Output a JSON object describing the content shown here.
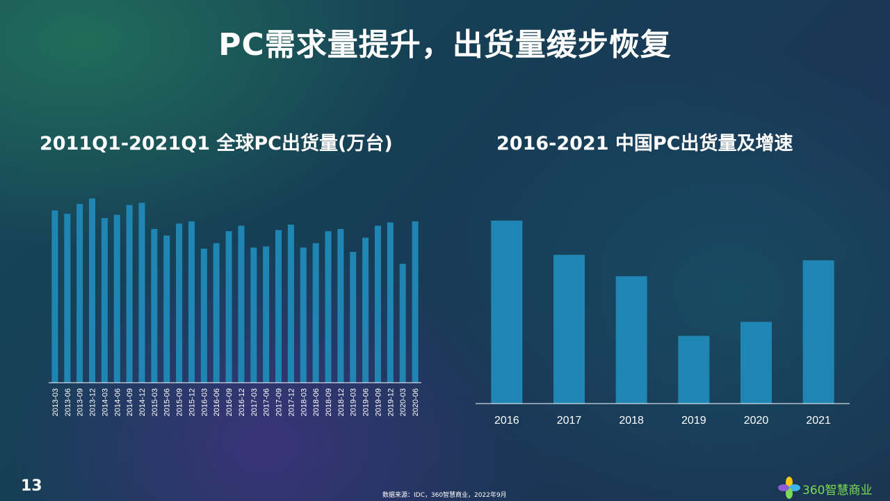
{
  "slide": {
    "title": "PC需求量提升，出货量缓步恢复",
    "page_number": "13",
    "source": "数据来源：IDC，360智慧商业，2022年9月",
    "logo_text": "360智慧商业"
  },
  "colors": {
    "bar": "#1f86b3",
    "axis": "#ffffff",
    "text": "#ffffff"
  },
  "chart_data": [
    {
      "type": "bar",
      "title": "2011Q1-2021Q1 全球PC出货量(万台)",
      "categories": [
        "2013-03",
        "2013-06",
        "2013-09",
        "2013-12",
        "2014-03",
        "2014-06",
        "2014-09",
        "2014-12",
        "2015-03",
        "2015-06",
        "2015-09",
        "2015-12",
        "2016-03",
        "2016-06",
        "2016-09",
        "2016-12",
        "2017-03",
        "2017-06",
        "2017-09",
        "2017-12",
        "2018-03",
        "2018-06",
        "2018-09",
        "2018-12",
        "2019-03",
        "2019-06",
        "2019-09",
        "2019-12",
        "2020-03",
        "2020-06"
      ],
      "values": [
        7900,
        7750,
        8200,
        8450,
        7550,
        7700,
        8150,
        8250,
        7050,
        6750,
        7300,
        7400,
        6150,
        6400,
        6950,
        7200,
        6200,
        6250,
        7000,
        7250,
        6200,
        6400,
        6950,
        7050,
        6000,
        6650,
        7200,
        7350,
        5450,
        7400
      ],
      "ylim": [
        0,
        9000
      ],
      "grid": false,
      "legend": "none"
    },
    {
      "type": "bar",
      "title": "2016-2021 中国PC出货量及增速",
      "categories": [
        "2016",
        "2017",
        "2018",
        "2019",
        "2020",
        "2021"
      ],
      "values": [
        100,
        81.3,
        69.6,
        37.0,
        44.7,
        78.3
      ],
      "ylim": [
        0,
        100
      ],
      "grid": false,
      "legend": "none"
    }
  ]
}
